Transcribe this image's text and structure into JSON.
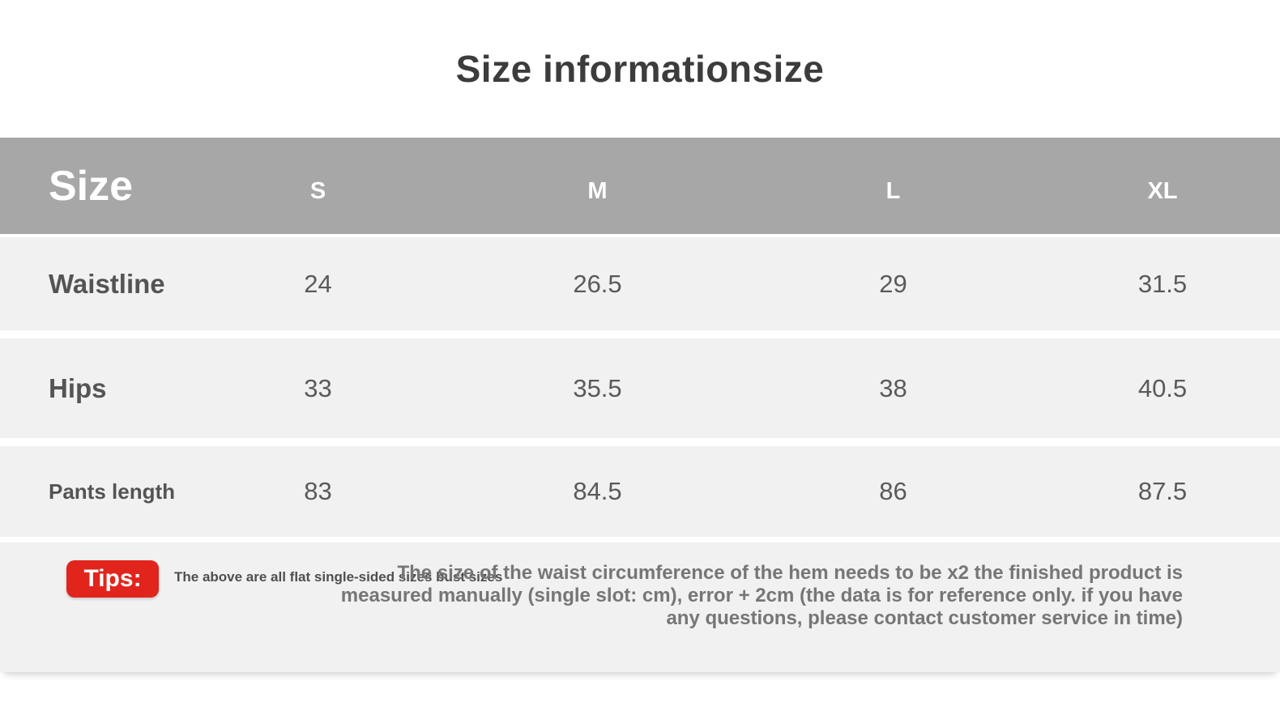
{
  "page": {
    "title": "Size informationsize"
  },
  "table": {
    "header": {
      "label": "Size",
      "columns": [
        "S",
        "M",
        "L",
        "XL"
      ]
    },
    "rows": [
      {
        "label": "Waistline",
        "values": [
          "24",
          "26.5",
          "29",
          "31.5"
        ]
      },
      {
        "label": "Hips",
        "values": [
          "33",
          "35.5",
          "38",
          "40.5"
        ]
      },
      {
        "label": "Pants length",
        "values": [
          "83",
          "84.5",
          "86",
          "87.5"
        ]
      }
    ]
  },
  "tips": {
    "badge_label": "Tips:",
    "note_small": "The above are all flat single-sided sizes bust sizes",
    "note_large": "The size of the waist circumference of the hem needs to be x2 the finished product is measured manually (single slot: cm), error + 2cm (the data is for reference only. if you have any questions, please contact customer service in time)"
  },
  "colors": {
    "header_bg": "#a7a7a7",
    "row_bg": "#f1f1f1",
    "tips_red": "#e1251d",
    "title_text": "#3c3c3c",
    "label_text": "#545454",
    "value_text": "#5a5a5a",
    "note_text": "#767676"
  }
}
